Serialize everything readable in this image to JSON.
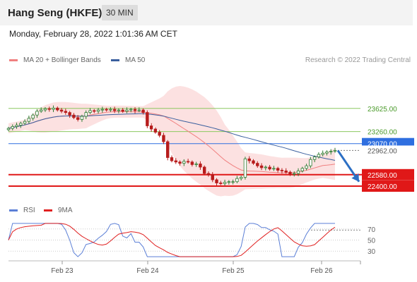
{
  "header": {
    "title": "Hang Seng (HKFE)",
    "timeframe": "30 MIN",
    "datetime": "Monday, February 28, 2022 1:01:36 AM CET"
  },
  "legend": {
    "ma20": "MA 20 + Bollinger Bands",
    "ma20_color": "#f08080",
    "ma50": "MA 50",
    "ma50_color": "#3a5f9e",
    "credit": "Research © 2022 Trading Central"
  },
  "rsi_legend": {
    "rsi": "RSI",
    "rsi_color": "#5b7fd6",
    "ma9": "9MA",
    "ma9_color": "#e02020"
  },
  "chart_data": [
    {
      "type": "candlestick",
      "ylim": [
        22200,
        24300
      ],
      "x_ticks": [
        "Feb 23",
        "Feb 24",
        "Feb 25",
        "Feb 26"
      ],
      "levels": [
        {
          "label": "23625.00",
          "value": 23625,
          "kind": "resistance",
          "color": "#8cc860"
        },
        {
          "label": "23260.00",
          "value": 23260,
          "kind": "resistance",
          "color": "#8cc860"
        },
        {
          "label": "23070.00",
          "value": 23070,
          "kind": "pivot",
          "color": "#2f6fe0"
        },
        {
          "label": "22580.00",
          "value": 22580,
          "kind": "support",
          "color": "#e01818"
        },
        {
          "label": "22400.00",
          "value": 22400,
          "kind": "support",
          "color": "#e01818"
        }
      ],
      "last_price": {
        "label": "22962.00",
        "value": 22962
      },
      "closes": [
        23310,
        23340,
        23360,
        23390,
        23420,
        23470,
        23520,
        23580,
        23600,
        23620,
        23610,
        23630,
        23600,
        23580,
        23560,
        23520,
        23480,
        23450,
        23500,
        23560,
        23590,
        23580,
        23600,
        23610,
        23600,
        23610,
        23590,
        23600,
        23580,
        23600,
        23610,
        23590,
        23600,
        23560,
        23350,
        23300,
        23250,
        23200,
        23100,
        22850,
        22800,
        22780,
        22760,
        22790,
        22780,
        22740,
        22750,
        22700,
        22600,
        22580,
        22500,
        22450,
        22440,
        22460,
        22470,
        22470,
        22520,
        22540,
        22830,
        22800,
        22760,
        22720,
        22690,
        22700,
        22670,
        22680,
        22650,
        22640,
        22620,
        22590,
        22600,
        22640,
        22680,
        22720,
        22820,
        22860,
        22900,
        22920,
        22940,
        22950,
        22962
      ]
    },
    {
      "type": "line",
      "name": "RSI",
      "ylim": [
        15,
        85
      ],
      "y_ticks": [
        70,
        50,
        30
      ],
      "overbought_level": 68
    }
  ]
}
